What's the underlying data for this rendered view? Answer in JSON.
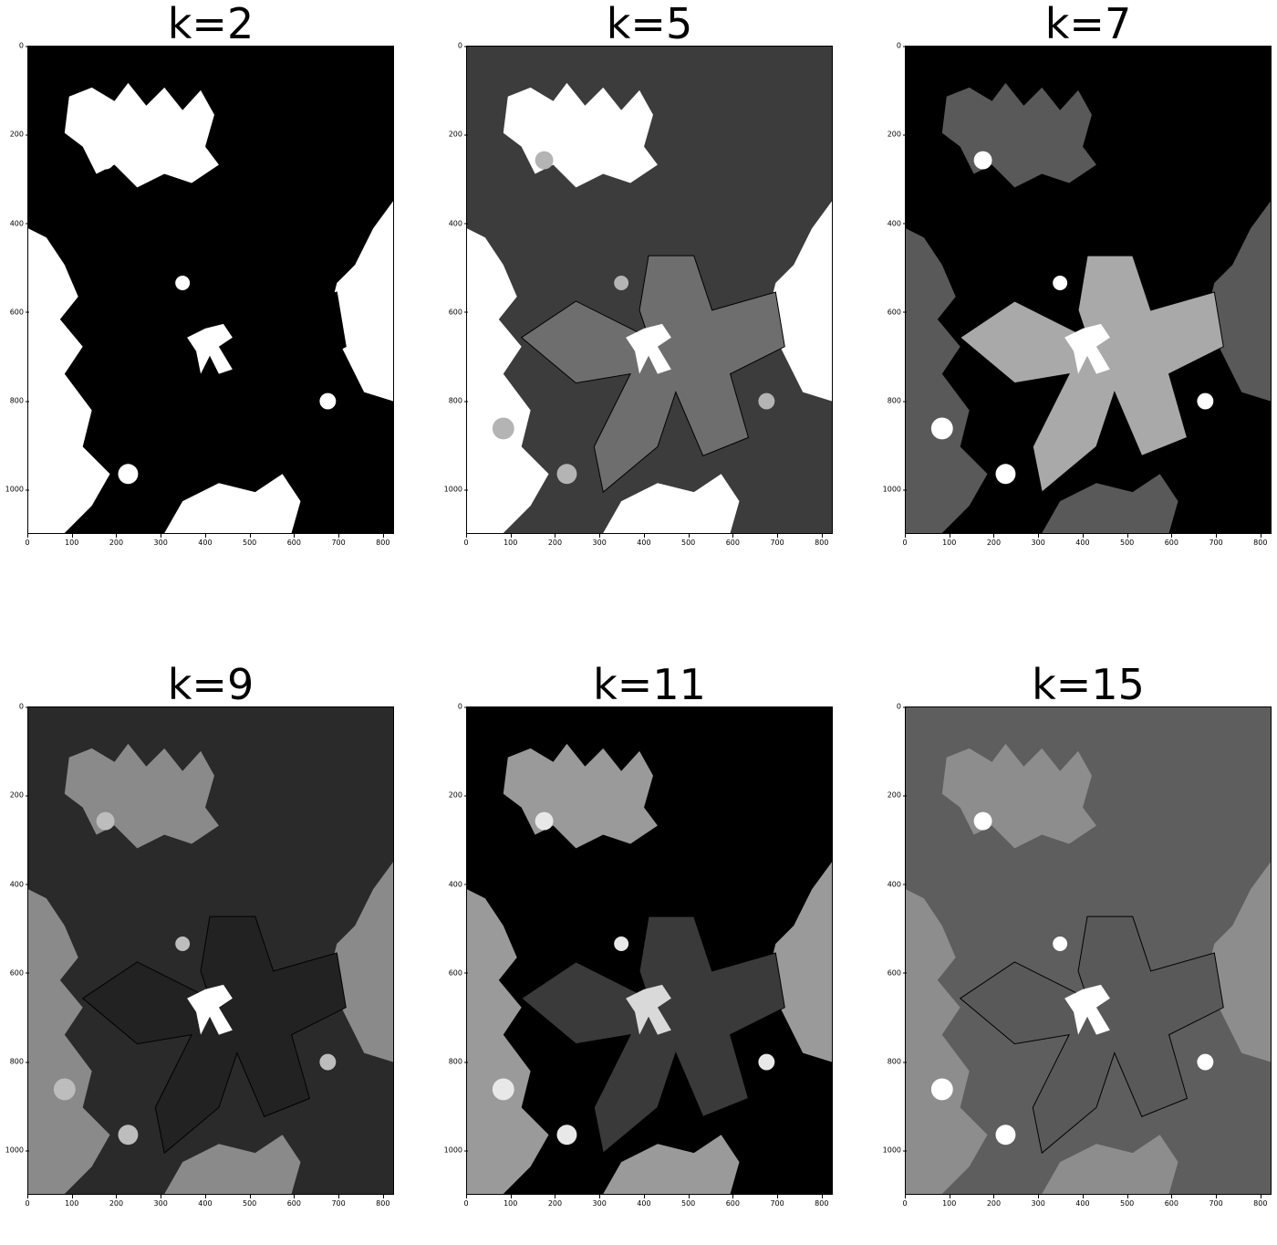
{
  "figure": {
    "panels": [
      {
        "title": "k=2"
      },
      {
        "title": "k=5"
      },
      {
        "title": "k=7"
      },
      {
        "title": "k=9"
      },
      {
        "title": "k=11"
      },
      {
        "title": "k=15"
      }
    ],
    "y_ticks": [
      "0",
      "200",
      "400",
      "600",
      "800",
      "1000"
    ],
    "x_ticks": [
      "0",
      "100",
      "200",
      "300",
      "400",
      "500",
      "600",
      "700",
      "800"
    ],
    "image_extent": {
      "x_max": 825,
      "y_max": 1100
    }
  },
  "palettes": [
    {
      "bg": "#000000",
      "petal": "#000000",
      "leaf": "#ffffff",
      "center": "#ffffff",
      "spot": "#ffffff"
    },
    {
      "bg": "#3c3c3c",
      "petal": "#6e6e6e",
      "leaf": "#ffffff",
      "center": "#ffffff",
      "spot": "#b4b4b4"
    },
    {
      "bg": "#000000",
      "petal": "#a9a9a9",
      "leaf": "#595959",
      "center": "#ffffff",
      "spot": "#ffffff"
    },
    {
      "bg": "#2a2a2a",
      "petal": "#222222",
      "leaf": "#8a8a8a",
      "center": "#ffffff",
      "spot": "#bdbdbd"
    },
    {
      "bg": "#000000",
      "petal": "#3a3a3a",
      "leaf": "#9a9a9a",
      "center": "#d9d9d9",
      "spot": "#e8e8e8"
    },
    {
      "bg": "#5e5e5e",
      "petal": "#595959",
      "leaf": "#8d8d8d",
      "center": "#ffffff",
      "spot": "#ffffff"
    }
  ]
}
